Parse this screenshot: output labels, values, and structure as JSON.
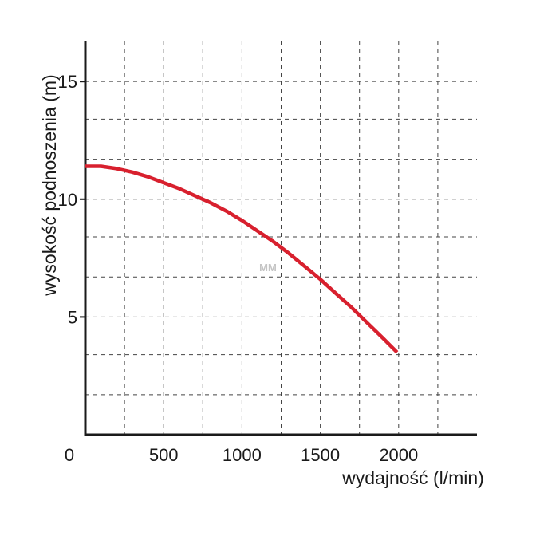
{
  "chart_data": {
    "type": "line",
    "title": "",
    "xlabel": "wydajność (l/min)",
    "ylabel": "wysokość podnoszenia (m)",
    "xlim": [
      0,
      2500
    ],
    "ylim": [
      0,
      16.7
    ],
    "x_ticks": [
      {
        "value": 0,
        "label": "0"
      },
      {
        "value": 500,
        "label": "500"
      },
      {
        "value": 1000,
        "label": "1000"
      },
      {
        "value": 1500,
        "label": "1500"
      },
      {
        "value": 2000,
        "label": "2000"
      }
    ],
    "y_ticks": [
      {
        "value": 5,
        "label": "5"
      },
      {
        "value": 10,
        "label": "10"
      },
      {
        "value": 15,
        "label": "15"
      }
    ],
    "x_grid": [
      250,
      500,
      750,
      1000,
      1250,
      1500,
      1750,
      2000,
      2250
    ],
    "y_grid": [
      1.7,
      3.4,
      5,
      6.7,
      8.4,
      10,
      11.7,
      13.4,
      15
    ],
    "grid": true,
    "grid_style": "dashed",
    "series": [
      {
        "color": "#d8202e",
        "x": [
          0,
          100,
          200,
          300,
          400,
          500,
          600,
          700,
          800,
          900,
          1000,
          1100,
          1200,
          1300,
          1400,
          1500,
          1600,
          1700,
          1800,
          1900,
          1990
        ],
        "y": [
          11.4,
          11.4,
          11.3,
          11.15,
          10.95,
          10.7,
          10.45,
          10.15,
          9.85,
          9.5,
          9.1,
          8.65,
          8.2,
          7.7,
          7.15,
          6.6,
          6.0,
          5.4,
          4.75,
          4.1,
          3.5
        ]
      }
    ],
    "watermark": "MM",
    "colors": {
      "axis": "#1a1a1a",
      "grid": "#444444",
      "text": "#1a1a1a"
    }
  }
}
